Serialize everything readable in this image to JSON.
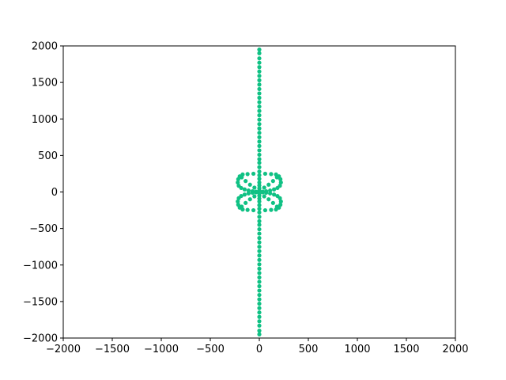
{
  "chart_data": {
    "type": "scatter",
    "title": "",
    "xlabel": "",
    "ylabel": "",
    "xlim": [
      -2000,
      2000
    ],
    "ylim": [
      -2000,
      2000
    ],
    "grid": false,
    "x_ticks": [
      -2000,
      -1500,
      -1000,
      -500,
      0,
      500,
      1000,
      1500,
      2000
    ],
    "y_ticks": [
      -2000,
      -1500,
      -1000,
      -500,
      0,
      500,
      1000,
      1500,
      2000
    ],
    "x_tick_labels": [
      "−2000",
      "−1500",
      "−1000",
      "−500",
      "0",
      "500",
      "1000",
      "1500",
      "2000"
    ],
    "y_tick_labels": [
      "−2000",
      "−1500",
      "−1000",
      "−500",
      "0",
      "500",
      "1000",
      "1500",
      "2000"
    ],
    "marker_color": "#10c184",
    "series": [
      {
        "points": [
          [
            0,
            1950
          ],
          [
            0,
            1900
          ],
          [
            0,
            1830
          ],
          [
            0,
            1770
          ],
          [
            0,
            1710
          ],
          [
            0,
            1650
          ],
          [
            0,
            1590
          ],
          [
            0,
            1530
          ],
          [
            0,
            1470
          ],
          [
            0,
            1410
          ],
          [
            0,
            1350
          ],
          [
            0,
            1290
          ],
          [
            0,
            1230
          ],
          [
            0,
            1170
          ],
          [
            0,
            1110
          ],
          [
            0,
            1050
          ],
          [
            0,
            990
          ],
          [
            0,
            930
          ],
          [
            0,
            870
          ],
          [
            0,
            810
          ],
          [
            0,
            750
          ],
          [
            0,
            690
          ],
          [
            0,
            630
          ],
          [
            0,
            570
          ],
          [
            0,
            510
          ],
          [
            0,
            450
          ],
          [
            0,
            400
          ],
          [
            0,
            340
          ],
          [
            0,
            280
          ],
          [
            0,
            -280
          ],
          [
            0,
            -340
          ],
          [
            0,
            -400
          ],
          [
            0,
            -450
          ],
          [
            0,
            -510
          ],
          [
            0,
            -570
          ],
          [
            0,
            -630
          ],
          [
            0,
            -690
          ],
          [
            0,
            -750
          ],
          [
            0,
            -810
          ],
          [
            0,
            -870
          ],
          [
            0,
            -930
          ],
          [
            0,
            -990
          ],
          [
            0,
            -1050
          ],
          [
            0,
            -1110
          ],
          [
            0,
            -1170
          ],
          [
            0,
            -1230
          ],
          [
            0,
            -1290
          ],
          [
            0,
            -1350
          ],
          [
            0,
            -1410
          ],
          [
            0,
            -1470
          ],
          [
            0,
            -1530
          ],
          [
            0,
            -1590
          ],
          [
            0,
            -1650
          ],
          [
            0,
            -1710
          ],
          [
            0,
            -1770
          ],
          [
            0,
            -1830
          ],
          [
            0,
            -1900
          ],
          [
            0,
            -1950
          ],
          [
            0,
            230
          ],
          [
            0,
            180
          ],
          [
            0,
            130
          ],
          [
            0,
            90
          ],
          [
            0,
            50
          ],
          [
            0,
            20
          ],
          [
            0,
            0
          ],
          [
            0,
            -20
          ],
          [
            0,
            -50
          ],
          [
            0,
            -90
          ],
          [
            0,
            -130
          ],
          [
            0,
            -180
          ],
          [
            0,
            -230
          ],
          [
            -60,
            250
          ],
          [
            60,
            250
          ],
          [
            -170,
            240
          ],
          [
            170,
            240
          ],
          [
            -60,
            -250
          ],
          [
            60,
            -250
          ],
          [
            -170,
            -240
          ],
          [
            170,
            -240
          ],
          [
            -120,
            245
          ],
          [
            120,
            245
          ],
          [
            -120,
            -245
          ],
          [
            120,
            -245
          ],
          [
            -200,
            215
          ],
          [
            200,
            215
          ],
          [
            -215,
            175
          ],
          [
            215,
            175
          ],
          [
            -220,
            130
          ],
          [
            220,
            130
          ],
          [
            -210,
            85
          ],
          [
            210,
            85
          ],
          [
            -185,
            55
          ],
          [
            185,
            55
          ],
          [
            -150,
            35
          ],
          [
            150,
            35
          ],
          [
            -110,
            20
          ],
          [
            110,
            20
          ],
          [
            -70,
            10
          ],
          [
            70,
            10
          ],
          [
            -35,
            5
          ],
          [
            35,
            5
          ],
          [
            -200,
            -215
          ],
          [
            200,
            -215
          ],
          [
            -215,
            -175
          ],
          [
            215,
            -175
          ],
          [
            -220,
            -130
          ],
          [
            220,
            -130
          ],
          [
            -210,
            -85
          ],
          [
            210,
            -85
          ],
          [
            -185,
            -55
          ],
          [
            185,
            -55
          ],
          [
            -150,
            -35
          ],
          [
            150,
            -35
          ],
          [
            -110,
            -20
          ],
          [
            110,
            -20
          ],
          [
            -70,
            -10
          ],
          [
            70,
            -10
          ],
          [
            -35,
            -5
          ],
          [
            35,
            -5
          ],
          [
            -140,
            150
          ],
          [
            140,
            150
          ],
          [
            -95,
            100
          ],
          [
            95,
            100
          ],
          [
            -50,
            60
          ],
          [
            50,
            60
          ],
          [
            -140,
            -150
          ],
          [
            140,
            -150
          ],
          [
            -95,
            -100
          ],
          [
            95,
            -100
          ],
          [
            -50,
            -60
          ],
          [
            50,
            -60
          ],
          [
            -180,
            200
          ],
          [
            180,
            200
          ],
          [
            -180,
            -200
          ],
          [
            180,
            -200
          ]
        ]
      }
    ]
  }
}
